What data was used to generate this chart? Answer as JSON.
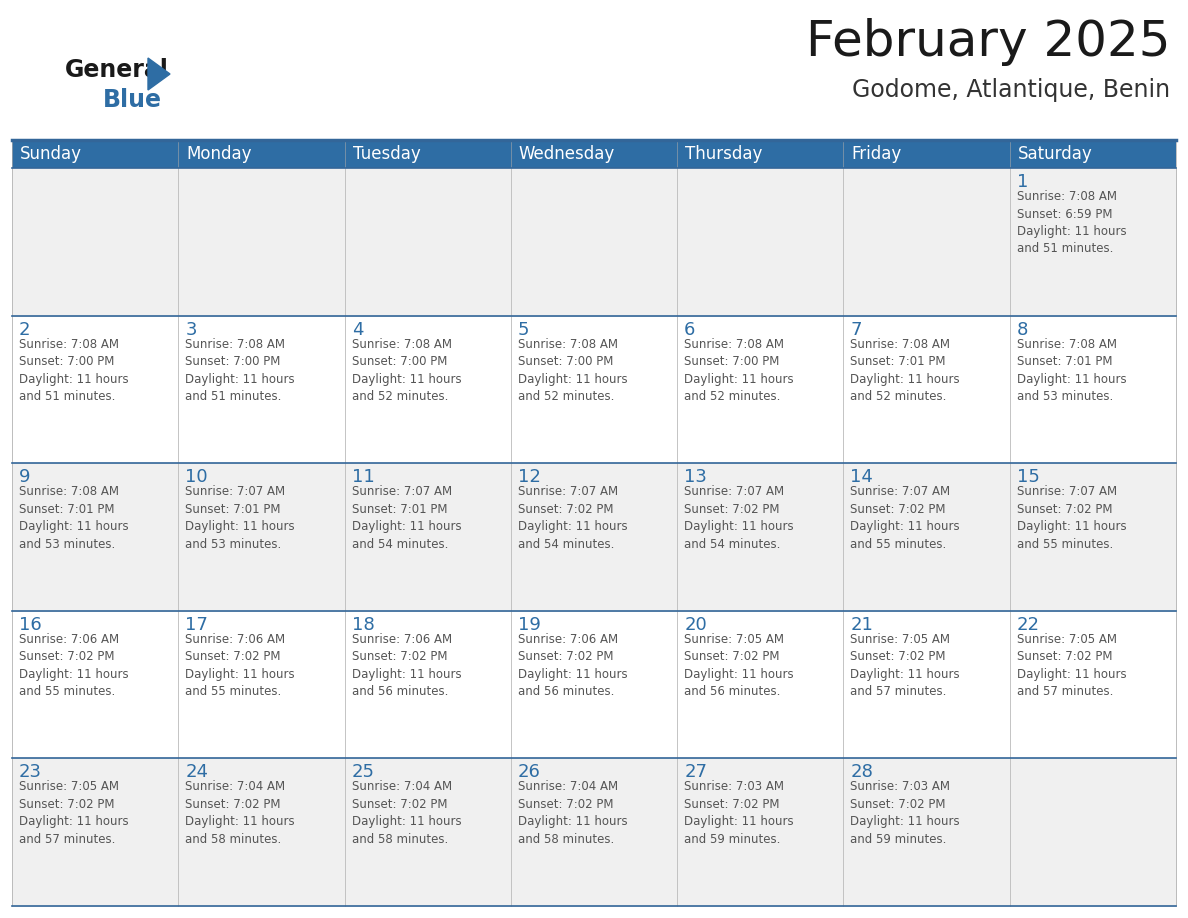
{
  "title": "February 2025",
  "subtitle": "Godome, Atlantique, Benin",
  "header_bg_color": "#2e6da4",
  "header_text_color": "#ffffff",
  "cell_bg_even": "#f0f0f0",
  "cell_bg_odd": "#ffffff",
  "day_number_color": "#2e6da4",
  "text_color": "#555555",
  "border_color": "#336699",
  "outer_border_color": "#cccccc",
  "days_of_week": [
    "Sunday",
    "Monday",
    "Tuesday",
    "Wednesday",
    "Thursday",
    "Friday",
    "Saturday"
  ],
  "weeks": [
    [
      {
        "day": null,
        "info": null
      },
      {
        "day": null,
        "info": null
      },
      {
        "day": null,
        "info": null
      },
      {
        "day": null,
        "info": null
      },
      {
        "day": null,
        "info": null
      },
      {
        "day": null,
        "info": null
      },
      {
        "day": 1,
        "info": "Sunrise: 7:08 AM\nSunset: 6:59 PM\nDaylight: 11 hours\nand 51 minutes."
      }
    ],
    [
      {
        "day": 2,
        "info": "Sunrise: 7:08 AM\nSunset: 7:00 PM\nDaylight: 11 hours\nand 51 minutes."
      },
      {
        "day": 3,
        "info": "Sunrise: 7:08 AM\nSunset: 7:00 PM\nDaylight: 11 hours\nand 51 minutes."
      },
      {
        "day": 4,
        "info": "Sunrise: 7:08 AM\nSunset: 7:00 PM\nDaylight: 11 hours\nand 52 minutes."
      },
      {
        "day": 5,
        "info": "Sunrise: 7:08 AM\nSunset: 7:00 PM\nDaylight: 11 hours\nand 52 minutes."
      },
      {
        "day": 6,
        "info": "Sunrise: 7:08 AM\nSunset: 7:00 PM\nDaylight: 11 hours\nand 52 minutes."
      },
      {
        "day": 7,
        "info": "Sunrise: 7:08 AM\nSunset: 7:01 PM\nDaylight: 11 hours\nand 52 minutes."
      },
      {
        "day": 8,
        "info": "Sunrise: 7:08 AM\nSunset: 7:01 PM\nDaylight: 11 hours\nand 53 minutes."
      }
    ],
    [
      {
        "day": 9,
        "info": "Sunrise: 7:08 AM\nSunset: 7:01 PM\nDaylight: 11 hours\nand 53 minutes."
      },
      {
        "day": 10,
        "info": "Sunrise: 7:07 AM\nSunset: 7:01 PM\nDaylight: 11 hours\nand 53 minutes."
      },
      {
        "day": 11,
        "info": "Sunrise: 7:07 AM\nSunset: 7:01 PM\nDaylight: 11 hours\nand 54 minutes."
      },
      {
        "day": 12,
        "info": "Sunrise: 7:07 AM\nSunset: 7:02 PM\nDaylight: 11 hours\nand 54 minutes."
      },
      {
        "day": 13,
        "info": "Sunrise: 7:07 AM\nSunset: 7:02 PM\nDaylight: 11 hours\nand 54 minutes."
      },
      {
        "day": 14,
        "info": "Sunrise: 7:07 AM\nSunset: 7:02 PM\nDaylight: 11 hours\nand 55 minutes."
      },
      {
        "day": 15,
        "info": "Sunrise: 7:07 AM\nSunset: 7:02 PM\nDaylight: 11 hours\nand 55 minutes."
      }
    ],
    [
      {
        "day": 16,
        "info": "Sunrise: 7:06 AM\nSunset: 7:02 PM\nDaylight: 11 hours\nand 55 minutes."
      },
      {
        "day": 17,
        "info": "Sunrise: 7:06 AM\nSunset: 7:02 PM\nDaylight: 11 hours\nand 55 minutes."
      },
      {
        "day": 18,
        "info": "Sunrise: 7:06 AM\nSunset: 7:02 PM\nDaylight: 11 hours\nand 56 minutes."
      },
      {
        "day": 19,
        "info": "Sunrise: 7:06 AM\nSunset: 7:02 PM\nDaylight: 11 hours\nand 56 minutes."
      },
      {
        "day": 20,
        "info": "Sunrise: 7:05 AM\nSunset: 7:02 PM\nDaylight: 11 hours\nand 56 minutes."
      },
      {
        "day": 21,
        "info": "Sunrise: 7:05 AM\nSunset: 7:02 PM\nDaylight: 11 hours\nand 57 minutes."
      },
      {
        "day": 22,
        "info": "Sunrise: 7:05 AM\nSunset: 7:02 PM\nDaylight: 11 hours\nand 57 minutes."
      }
    ],
    [
      {
        "day": 23,
        "info": "Sunrise: 7:05 AM\nSunset: 7:02 PM\nDaylight: 11 hours\nand 57 minutes."
      },
      {
        "day": 24,
        "info": "Sunrise: 7:04 AM\nSunset: 7:02 PM\nDaylight: 11 hours\nand 58 minutes."
      },
      {
        "day": 25,
        "info": "Sunrise: 7:04 AM\nSunset: 7:02 PM\nDaylight: 11 hours\nand 58 minutes."
      },
      {
        "day": 26,
        "info": "Sunrise: 7:04 AM\nSunset: 7:02 PM\nDaylight: 11 hours\nand 58 minutes."
      },
      {
        "day": 27,
        "info": "Sunrise: 7:03 AM\nSunset: 7:02 PM\nDaylight: 11 hours\nand 59 minutes."
      },
      {
        "day": 28,
        "info": "Sunrise: 7:03 AM\nSunset: 7:02 PM\nDaylight: 11 hours\nand 59 minutes."
      },
      {
        "day": null,
        "info": null
      }
    ]
  ],
  "logo_color_general": "#1a1a1a",
  "logo_color_blue": "#2e6da4",
  "logo_triangle_color": "#2e6da4",
  "title_fontsize": 36,
  "subtitle_fontsize": 17,
  "header_fontsize": 12,
  "day_num_fontsize": 13,
  "info_fontsize": 8.5
}
